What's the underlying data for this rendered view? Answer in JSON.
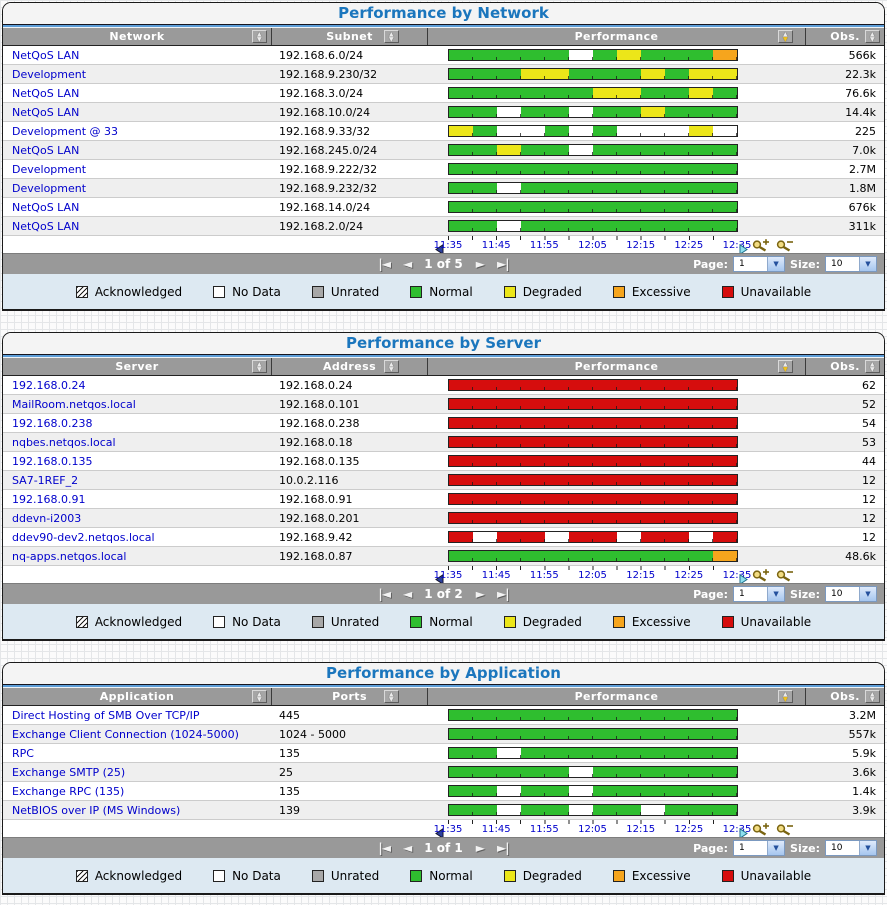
{
  "colors": {
    "normal": "#2fbe2f",
    "degraded": "#ece619",
    "excessive": "#f6a51d",
    "unavailable": "#d60d0d",
    "no_data": "#ffffff",
    "unrated": "#a8a8a8",
    "title_text": "#1b76bd",
    "link_text": "#0000cc",
    "header_bar": "#9a9a9a",
    "legend_background": "#dde9f2"
  },
  "segment_key": {
    "G": "normal",
    "Y": "degraded",
    "O": "excessive",
    "R": "unavailable",
    "W": "no_data"
  },
  "time_axis": {
    "ticks": [
      "11:35",
      "11:45",
      "11:55",
      "12:05",
      "12:15",
      "12:25",
      "12:35"
    ]
  },
  "pager": {
    "page_label": "Page:",
    "size_label": "Size:",
    "first": "|◄",
    "prev": "◄",
    "next": "►",
    "last": "►|"
  },
  "icons": {
    "sort": "up-down-sort-arrows",
    "scroll_left": "left-triangle",
    "scroll_right": "right-triangle",
    "zoom_in": "magnifier-plus",
    "zoom_out": "magnifier-minus",
    "dropdown": "down-chevron"
  },
  "legend": {
    "items": [
      {
        "key": "acknowledged",
        "label": "Acknowledged"
      },
      {
        "key": "no_data",
        "label": "No Data"
      },
      {
        "key": "unrated",
        "label": "Unrated"
      },
      {
        "key": "normal",
        "label": "Normal"
      },
      {
        "key": "degraded",
        "label": "Degraded"
      },
      {
        "key": "excessive",
        "label": "Excessive"
      },
      {
        "key": "unavailable",
        "label": "Unavailable"
      }
    ]
  },
  "panels": [
    {
      "id": "network",
      "title": "Performance by Network",
      "columns": [
        "Network",
        "Subnet",
        "Performance",
        "Obs."
      ],
      "rows": [
        {
          "name": "NetQoS LAN",
          "detail": "192.168.6.0/24",
          "segments": "GGGGGWGYGGGO",
          "obs": "566k"
        },
        {
          "name": "Development",
          "detail": "192.168.9.230/32",
          "segments": "GGGYYGGGYGYY",
          "obs": "22.3k"
        },
        {
          "name": "NetQoS LAN",
          "detail": "192.168.3.0/24",
          "segments": "GGGGGGYYGGYG",
          "obs": "76.6k"
        },
        {
          "name": "NetQoS LAN",
          "detail": "192.168.10.0/24",
          "segments": "GGWGGWGGYGGG",
          "obs": "14.4k"
        },
        {
          "name": "Development @ 33",
          "detail": "192.168.9.33/32",
          "segments": "YGWWGWGWWWYW",
          "obs": "225"
        },
        {
          "name": "NetQoS LAN",
          "detail": "192.168.245.0/24",
          "segments": "GGYGGWGGGGGG",
          "obs": "7.0k"
        },
        {
          "name": "Development",
          "detail": "192.168.9.222/32",
          "segments": "GGGGGGGGGGGG",
          "obs": "2.7M"
        },
        {
          "name": "Development",
          "detail": "192.168.9.232/32",
          "segments": "GGWGGGGGGGGG",
          "obs": "1.8M"
        },
        {
          "name": "NetQoS LAN",
          "detail": "192.168.14.0/24",
          "segments": "GGGGGGGGGGGG",
          "obs": "676k"
        },
        {
          "name": "NetQoS LAN",
          "detail": "192.168.2.0/24",
          "segments": "GGWGGGGGGGGG",
          "obs": "311k"
        }
      ],
      "page_info": "1 of 5",
      "page": "1",
      "size": "10"
    },
    {
      "id": "server",
      "title": "Performance by Server",
      "columns": [
        "Server",
        "Address",
        "Performance",
        "Obs."
      ],
      "rows": [
        {
          "name": "192.168.0.24",
          "detail": "192.168.0.24",
          "segments": "RRRRRRRRRRRR",
          "obs": "62"
        },
        {
          "name": "MailRoom.netqos.local",
          "detail": "192.168.0.101",
          "segments": "RRRRRRRRRRRR",
          "obs": "52"
        },
        {
          "name": "192.168.0.238",
          "detail": "192.168.0.238",
          "segments": "RRRRRRRRRRRR",
          "obs": "54"
        },
        {
          "name": "nqbes.netqos.local",
          "detail": "192.168.0.18",
          "segments": "RRRRRRRRRRRR",
          "obs": "53"
        },
        {
          "name": "192.168.0.135",
          "detail": "192.168.0.135",
          "segments": "RRRRRRRRRRRR",
          "obs": "44"
        },
        {
          "name": "SA7-1REF_2",
          "detail": "10.0.2.116",
          "segments": "RRRRRRRRRRRR",
          "obs": "12"
        },
        {
          "name": "192.168.0.91",
          "detail": "192.168.0.91",
          "segments": "RRRRRRRRRRRR",
          "obs": "12"
        },
        {
          "name": "ddevn-i2003",
          "detail": "192.168.0.201",
          "segments": "RRRRRRRRRRRR",
          "obs": "12"
        },
        {
          "name": "ddev90-dev2.netqos.local",
          "detail": "192.168.9.42",
          "segments": "RWRRWRRWRRWR",
          "obs": "12"
        },
        {
          "name": "nq-apps.netqos.local",
          "detail": "192.168.0.87",
          "segments": "GGGGGGGGGGGO",
          "obs": "48.6k"
        }
      ],
      "page_info": "1 of 2",
      "page": "1",
      "size": "10"
    },
    {
      "id": "application",
      "title": "Performance by Application",
      "columns": [
        "Application",
        "Ports",
        "Performance",
        "Obs."
      ],
      "rows": [
        {
          "name": "Direct Hosting of SMB Over TCP/IP",
          "detail": "445",
          "segments": "GGGGGGGGGGGG",
          "obs": "3.2M"
        },
        {
          "name": "Exchange Client Connection (1024-5000)",
          "detail": "1024 - 5000",
          "segments": "GGGGGGGGGGGG",
          "obs": "557k"
        },
        {
          "name": "RPC",
          "detail": "135",
          "segments": "GGWGGGGGGGGG",
          "obs": "5.9k"
        },
        {
          "name": "Exchange SMTP (25)",
          "detail": "25",
          "segments": "GGGGGWGGGGGG",
          "obs": "3.6k"
        },
        {
          "name": "Exchange RPC (135)",
          "detail": "135",
          "segments": "GGWGGWGGGGGG",
          "obs": "1.4k"
        },
        {
          "name": "NetBIOS over IP (MS Windows)",
          "detail": "139",
          "segments": "GGWGGWGGWGGG",
          "obs": "3.9k"
        }
      ],
      "page_info": "1 of 1",
      "page": "1",
      "size": "10"
    }
  ]
}
